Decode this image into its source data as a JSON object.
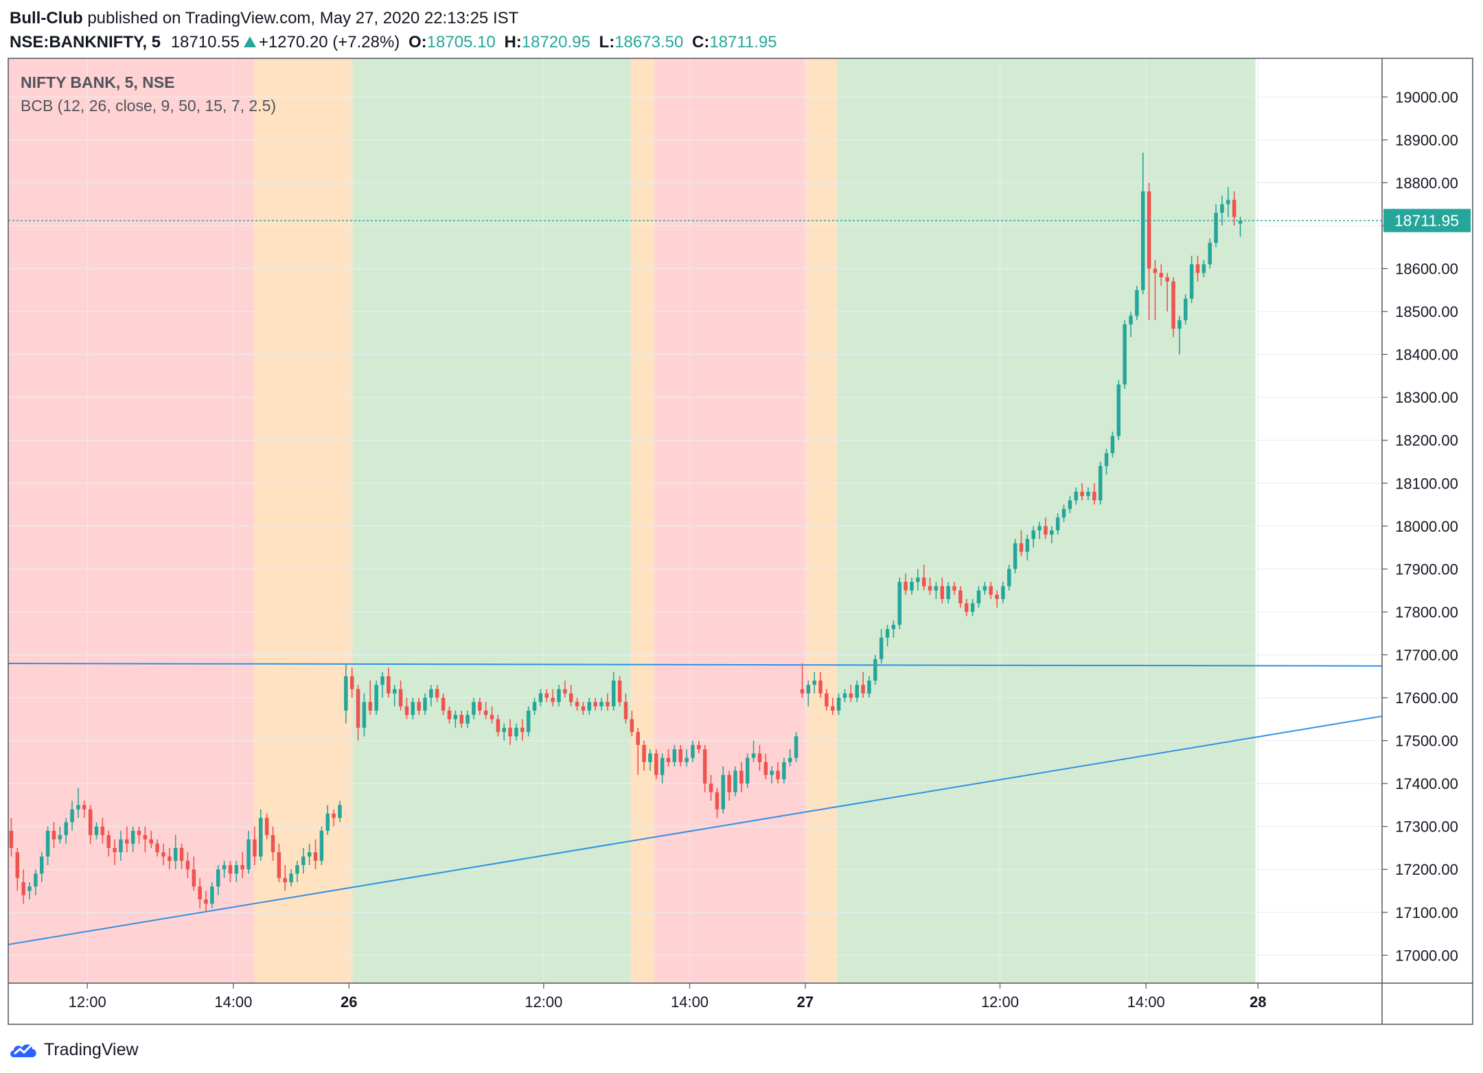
{
  "header": {
    "author": "Bull-Club",
    "published_text": "published on TradingView.com, May 27, 2020 22:13:25 IST",
    "symbol": "NSE:BANKNIFTY, 5",
    "last": "18710.55",
    "change": "+1270.20 (+7.28%)",
    "o_label": "O:",
    "o_val": "18705.10",
    "h_label": "H:",
    "h_val": "18720.95",
    "l_label": "L:",
    "l_val": "18673.50",
    "c_label": "C:",
    "c_val": "18711.95"
  },
  "legend": {
    "title": "NIFTY BANK, 5, NSE",
    "indicator": "BCB (12, 26, close, 9, 50, 15, 7, 2.5)"
  },
  "price_label": "18711.95",
  "footer": {
    "brand": "TradingView",
    "logo_icon": "tradingview-cloud-icon"
  },
  "colors": {
    "up": "#26a69a",
    "down": "#ef5350",
    "red_zone": "#ffd3d3",
    "orange_zone": "#ffe2c1",
    "green_zone": "#d3ebd3",
    "trendline": "#2f8fe6",
    "grid": "#e9edf0",
    "text": "#131722"
  },
  "chart_data": {
    "type": "candlestick",
    "ylim": [
      16935,
      19090
    ],
    "y_ticks": [
      17000,
      17100,
      17200,
      17300,
      17400,
      17500,
      17600,
      17700,
      17800,
      17900,
      18000,
      18100,
      18200,
      18300,
      18400,
      18500,
      18600,
      18700,
      18800,
      18900,
      19000
    ],
    "y_tick_labels": [
      "17000.00",
      "17100.00",
      "17200.00",
      "17300.00",
      "17400.00",
      "17500.00",
      "17600.00",
      "17700.00",
      "17800.00",
      "17900.00",
      "18000.00",
      "18100.00",
      "18200.00",
      "18300.00",
      "18400.00",
      "18500.00",
      "18600.00",
      "18700.00",
      "18800.00",
      "18900.00",
      "19000.00"
    ],
    "x_index_range": [
      -0.5,
      225.3
    ],
    "x_ticks": [
      {
        "index": 12.5,
        "label": "12:00",
        "bold": false
      },
      {
        "index": 36.5,
        "label": "14:00",
        "bold": false
      },
      {
        "index": 55.5,
        "label": "26",
        "bold": true
      },
      {
        "index": 87.5,
        "label": "12:00",
        "bold": false
      },
      {
        "index": 111.5,
        "label": "14:00",
        "bold": false
      },
      {
        "index": 130.5,
        "label": "27",
        "bold": true
      },
      {
        "index": 162.5,
        "label": "12:00",
        "bold": false
      },
      {
        "index": 186.5,
        "label": "14:00",
        "bold": false
      },
      {
        "index": 204.9,
        "label": "28",
        "bold": true
      }
    ],
    "zones": [
      {
        "from": -0.5,
        "to": 39.9,
        "zone": "red"
      },
      {
        "from": 39.9,
        "to": 56.1,
        "zone": "orange"
      },
      {
        "from": 56.1,
        "to": 101.8,
        "zone": "green"
      },
      {
        "from": 101.8,
        "to": 105.7,
        "zone": "orange"
      },
      {
        "from": 105.7,
        "to": 130.7,
        "zone": "red"
      },
      {
        "from": 130.7,
        "to": 135.7,
        "zone": "orange"
      },
      {
        "from": 135.7,
        "to": 204.5,
        "zone": "green"
      }
    ],
    "trendlines": [
      {
        "x1": -0.5,
        "y1": 17680,
        "x2": 225.3,
        "y2": 17674
      },
      {
        "x1": -0.5,
        "y1": 17025,
        "x2": 225.3,
        "y2": 17557
      }
    ],
    "last_price": 18711.95,
    "candles_ohlc": [
      [
        17290,
        17320,
        17230,
        17250
      ],
      [
        17240,
        17250,
        17150,
        17180
      ],
      [
        17170,
        17200,
        17120,
        17140
      ],
      [
        17150,
        17170,
        17130,
        17160
      ],
      [
        17160,
        17200,
        17140,
        17190
      ],
      [
        17190,
        17240,
        17170,
        17230
      ],
      [
        17230,
        17300,
        17210,
        17290
      ],
      [
        17290,
        17310,
        17250,
        17270
      ],
      [
        17270,
        17300,
        17260,
        17280
      ],
      [
        17280,
        17320,
        17260,
        17310
      ],
      [
        17310,
        17360,
        17290,
        17340
      ],
      [
        17340,
        17390,
        17320,
        17350
      ],
      [
        17350,
        17360,
        17320,
        17340
      ],
      [
        17340,
        17350,
        17260,
        17280
      ],
      [
        17280,
        17310,
        17270,
        17300
      ],
      [
        17300,
        17320,
        17260,
        17280
      ],
      [
        17280,
        17290,
        17230,
        17250
      ],
      [
        17250,
        17270,
        17210,
        17240
      ],
      [
        17240,
        17290,
        17220,
        17270
      ],
      [
        17270,
        17300,
        17240,
        17260
      ],
      [
        17260,
        17300,
        17240,
        17290
      ],
      [
        17290,
        17300,
        17260,
        17280
      ],
      [
        17280,
        17300,
        17240,
        17270
      ],
      [
        17270,
        17290,
        17250,
        17260
      ],
      [
        17260,
        17270,
        17230,
        17240
      ],
      [
        17240,
        17260,
        17210,
        17230
      ],
      [
        17230,
        17250,
        17200,
        17220
      ],
      [
        17220,
        17280,
        17200,
        17250
      ],
      [
        17250,
        17260,
        17200,
        17220
      ],
      [
        17220,
        17240,
        17180,
        17200
      ],
      [
        17200,
        17230,
        17150,
        17160
      ],
      [
        17160,
        17180,
        17110,
        17130
      ],
      [
        17130,
        17150,
        17100,
        17120
      ],
      [
        17120,
        17170,
        17110,
        17160
      ],
      [
        17160,
        17210,
        17140,
        17200
      ],
      [
        17200,
        17220,
        17180,
        17210
      ],
      [
        17210,
        17220,
        17170,
        17190
      ],
      [
        17190,
        17220,
        17170,
        17210
      ],
      [
        17210,
        17240,
        17180,
        17200
      ],
      [
        17200,
        17290,
        17190,
        17270
      ],
      [
        17270,
        17300,
        17210,
        17230
      ],
      [
        17230,
        17340,
        17220,
        17320
      ],
      [
        17320,
        17330,
        17270,
        17280
      ],
      [
        17280,
        17300,
        17220,
        17240
      ],
      [
        17240,
        17260,
        17170,
        17180
      ],
      [
        17180,
        17210,
        17150,
        17170
      ],
      [
        17170,
        17200,
        17160,
        17190
      ],
      [
        17190,
        17220,
        17170,
        17210
      ],
      [
        17210,
        17250,
        17190,
        17230
      ],
      [
        17230,
        17260,
        17210,
        17240
      ],
      [
        17240,
        17270,
        17200,
        17220
      ],
      [
        17220,
        17300,
        17210,
        17290
      ],
      [
        17290,
        17350,
        17280,
        17330
      ],
      [
        17330,
        17340,
        17300,
        17320
      ],
      [
        17320,
        17360,
        17310,
        17350
      ],
      [
        17570,
        17680,
        17540,
        17650
      ],
      [
        17650,
        17670,
        17600,
        17620
      ],
      [
        17620,
        17630,
        17500,
        17530
      ],
      [
        17530,
        17610,
        17510,
        17590
      ],
      [
        17590,
        17640,
        17560,
        17570
      ],
      [
        17570,
        17640,
        17560,
        17630
      ],
      [
        17630,
        17660,
        17600,
        17650
      ],
      [
        17650,
        17670,
        17600,
        17610
      ],
      [
        17610,
        17630,
        17580,
        17620
      ],
      [
        17620,
        17640,
        17570,
        17580
      ],
      [
        17580,
        17600,
        17550,
        17560
      ],
      [
        17560,
        17600,
        17550,
        17590
      ],
      [
        17590,
        17600,
        17560,
        17570
      ],
      [
        17570,
        17610,
        17560,
        17600
      ],
      [
        17600,
        17630,
        17580,
        17620
      ],
      [
        17620,
        17630,
        17590,
        17600
      ],
      [
        17600,
        17610,
        17560,
        17570
      ],
      [
        17570,
        17580,
        17540,
        17550
      ],
      [
        17550,
        17570,
        17530,
        17560
      ],
      [
        17560,
        17570,
        17530,
        17540
      ],
      [
        17540,
        17570,
        17530,
        17560
      ],
      [
        17560,
        17600,
        17550,
        17590
      ],
      [
        17590,
        17600,
        17560,
        17570
      ],
      [
        17570,
        17590,
        17550,
        17560
      ],
      [
        17560,
        17580,
        17540,
        17550
      ],
      [
        17550,
        17560,
        17510,
        17520
      ],
      [
        17520,
        17540,
        17500,
        17530
      ],
      [
        17530,
        17550,
        17490,
        17510
      ],
      [
        17510,
        17540,
        17500,
        17530
      ],
      [
        17530,
        17550,
        17500,
        17520
      ],
      [
        17520,
        17580,
        17510,
        17570
      ],
      [
        17570,
        17600,
        17560,
        17590
      ],
      [
        17590,
        17620,
        17580,
        17610
      ],
      [
        17610,
        17620,
        17590,
        17600
      ],
      [
        17600,
        17620,
        17580,
        17590
      ],
      [
        17590,
        17630,
        17580,
        17620
      ],
      [
        17620,
        17640,
        17600,
        17610
      ],
      [
        17610,
        17630,
        17580,
        17590
      ],
      [
        17590,
        17600,
        17570,
        17580
      ],
      [
        17580,
        17590,
        17560,
        17570
      ],
      [
        17570,
        17600,
        17560,
        17590
      ],
      [
        17590,
        17600,
        17570,
        17580
      ],
      [
        17580,
        17600,
        17570,
        17590
      ],
      [
        17590,
        17610,
        17570,
        17580
      ],
      [
        17580,
        17660,
        17570,
        17640
      ],
      [
        17640,
        17650,
        17580,
        17590
      ],
      [
        17590,
        17610,
        17540,
        17550
      ],
      [
        17550,
        17570,
        17510,
        17520
      ],
      [
        17520,
        17530,
        17420,
        17490
      ],
      [
        17490,
        17500,
        17430,
        17450
      ],
      [
        17450,
        17480,
        17430,
        17470
      ],
      [
        17470,
        17480,
        17410,
        17420
      ],
      [
        17420,
        17470,
        17400,
        17460
      ],
      [
        17460,
        17480,
        17440,
        17450
      ],
      [
        17450,
        17490,
        17440,
        17480
      ],
      [
        17480,
        17490,
        17440,
        17450
      ],
      [
        17450,
        17480,
        17440,
        17460
      ],
      [
        17460,
        17500,
        17450,
        17490
      ],
      [
        17490,
        17500,
        17470,
        17480
      ],
      [
        17480,
        17490,
        17380,
        17400
      ],
      [
        17400,
        17420,
        17360,
        17380
      ],
      [
        17380,
        17390,
        17320,
        17340
      ],
      [
        17340,
        17440,
        17330,
        17420
      ],
      [
        17420,
        17430,
        17360,
        17380
      ],
      [
        17380,
        17440,
        17370,
        17430
      ],
      [
        17430,
        17450,
        17380,
        17400
      ],
      [
        17400,
        17470,
        17390,
        17460
      ],
      [
        17460,
        17500,
        17450,
        17470
      ],
      [
        17470,
        17490,
        17430,
        17450
      ],
      [
        17450,
        17470,
        17410,
        17420
      ],
      [
        17420,
        17440,
        17400,
        17430
      ],
      [
        17430,
        17450,
        17400,
        17410
      ],
      [
        17410,
        17460,
        17400,
        17450
      ],
      [
        17450,
        17480,
        17440,
        17460
      ],
      [
        17460,
        17520,
        17450,
        17510
      ],
      [
        17620,
        17680,
        17600,
        17610
      ],
      [
        17610,
        17640,
        17580,
        17630
      ],
      [
        17630,
        17660,
        17610,
        17640
      ],
      [
        17640,
        17660,
        17600,
        17610
      ],
      [
        17610,
        17620,
        17570,
        17580
      ],
      [
        17580,
        17600,
        17560,
        17570
      ],
      [
        17570,
        17610,
        17560,
        17600
      ],
      [
        17600,
        17620,
        17590,
        17610
      ],
      [
        17610,
        17630,
        17590,
        17600
      ],
      [
        17600,
        17640,
        17590,
        17630
      ],
      [
        17630,
        17660,
        17600,
        17610
      ],
      [
        17610,
        17650,
        17600,
        17640
      ],
      [
        17640,
        17700,
        17630,
        17690
      ],
      [
        17690,
        17760,
        17680,
        17740
      ],
      [
        17740,
        17770,
        17720,
        17760
      ],
      [
        17760,
        17780,
        17740,
        17770
      ],
      [
        17770,
        17880,
        17760,
        17870
      ],
      [
        17870,
        17890,
        17840,
        17850
      ],
      [
        17850,
        17880,
        17840,
        17870
      ],
      [
        17870,
        17900,
        17850,
        17880
      ],
      [
        17880,
        17910,
        17850,
        17860
      ],
      [
        17860,
        17880,
        17840,
        17850
      ],
      [
        17850,
        17870,
        17830,
        17860
      ],
      [
        17860,
        17880,
        17820,
        17830
      ],
      [
        17830,
        17870,
        17820,
        17860
      ],
      [
        17860,
        17870,
        17840,
        17850
      ],
      [
        17850,
        17860,
        17810,
        17820
      ],
      [
        17820,
        17830,
        17790,
        17800
      ],
      [
        17800,
        17830,
        17790,
        17820
      ],
      [
        17820,
        17860,
        17810,
        17850
      ],
      [
        17850,
        17870,
        17840,
        17860
      ],
      [
        17860,
        17870,
        17830,
        17840
      ],
      [
        17840,
        17850,
        17810,
        17830
      ],
      [
        17830,
        17870,
        17820,
        17860
      ],
      [
        17860,
        17910,
        17850,
        17900
      ],
      [
        17900,
        17970,
        17890,
        17960
      ],
      [
        17960,
        17990,
        17930,
        17940
      ],
      [
        17940,
        17980,
        17920,
        17970
      ],
      [
        17970,
        18000,
        17950,
        17990
      ],
      [
        17990,
        18010,
        17970,
        18000
      ],
      [
        18000,
        18020,
        17970,
        17980
      ],
      [
        17980,
        18000,
        17960,
        17990
      ],
      [
        17990,
        18030,
        17980,
        18020
      ],
      [
        18020,
        18050,
        18010,
        18040
      ],
      [
        18040,
        18070,
        18030,
        18060
      ],
      [
        18060,
        18090,
        18050,
        18080
      ],
      [
        18080,
        18100,
        18060,
        18070
      ],
      [
        18070,
        18090,
        18060,
        18080
      ],
      [
        18080,
        18100,
        18050,
        18060
      ],
      [
        18060,
        18150,
        18050,
        18140
      ],
      [
        18140,
        18180,
        18120,
        18170
      ],
      [
        18170,
        18220,
        18160,
        18210
      ],
      [
        18210,
        18340,
        18200,
        18330
      ],
      [
        18330,
        18480,
        18320,
        18470
      ],
      [
        18470,
        18500,
        18440,
        18490
      ],
      [
        18490,
        18560,
        18480,
        18550
      ],
      [
        18550,
        18870,
        18540,
        18780
      ],
      [
        18780,
        18800,
        18480,
        18600
      ],
      [
        18600,
        18620,
        18480,
        18590
      ],
      [
        18590,
        18610,
        18560,
        18580
      ],
      [
        18580,
        18590,
        18500,
        18570
      ],
      [
        18570,
        18580,
        18440,
        18460
      ],
      [
        18460,
        18490,
        18400,
        18480
      ],
      [
        18480,
        18540,
        18470,
        18530
      ],
      [
        18530,
        18630,
        18520,
        18610
      ],
      [
        18610,
        18630,
        18570,
        18590
      ],
      [
        18590,
        18620,
        18580,
        18610
      ],
      [
        18610,
        18670,
        18600,
        18660
      ],
      [
        18660,
        18750,
        18650,
        18730
      ],
      [
        18730,
        18770,
        18700,
        18750
      ],
      [
        18750,
        18790,
        18720,
        18760
      ],
      [
        18760,
        18780,
        18700,
        18720
      ],
      [
        18705,
        18721,
        18674,
        18712
      ]
    ]
  }
}
